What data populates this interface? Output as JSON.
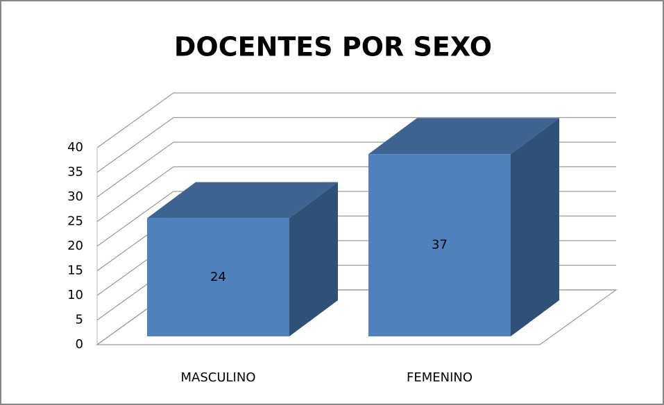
{
  "chart_data": {
    "type": "bar",
    "title": "DOCENTES POR SEXO",
    "categories": [
      "MASCULINO",
      "FEMENINO"
    ],
    "values": [
      24,
      37
    ],
    "color": "#4f81bd",
    "ylim": [
      0,
      40
    ],
    "yticks": [
      0,
      5,
      10,
      15,
      20,
      25,
      30,
      35,
      40
    ],
    "grid": true
  }
}
